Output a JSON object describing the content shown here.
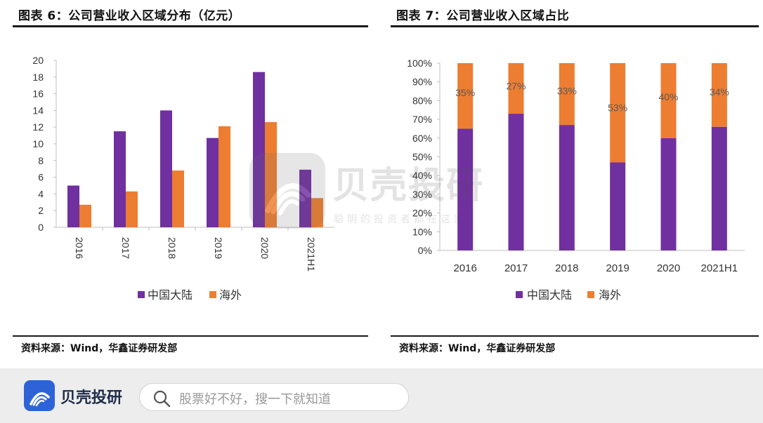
{
  "left": {
    "title": "图表 6：公司营业收入区域分布（亿元）",
    "source": "资料来源：Wind，华鑫证券研发部"
  },
  "right": {
    "title": "图表 7：公司营业收入区域占比",
    "source": "资料来源：Wind，华鑫证券研发部"
  },
  "colors": {
    "mainland": "#7030a0",
    "overseas": "#ed7d31",
    "rule": "#1a1a1a",
    "brand": "#2e63d8"
  },
  "chart_data": [
    {
      "type": "bar",
      "title": "",
      "categories": [
        "2016",
        "2017",
        "2018",
        "2019",
        "2020",
        "2021H1"
      ],
      "series": [
        {
          "name": "中国大陆",
          "values": [
            5.0,
            11.5,
            14.0,
            10.7,
            18.6,
            6.9
          ]
        },
        {
          "name": "海外",
          "values": [
            2.7,
            4.3,
            6.8,
            12.1,
            12.6,
            3.5
          ]
        }
      ],
      "ylim": [
        0,
        20
      ],
      "yticks": [
        0,
        2,
        4,
        6,
        8,
        10,
        12,
        14,
        16,
        18,
        20
      ],
      "xlabel": "",
      "ylabel": "",
      "grid": false,
      "legend": "bottom"
    },
    {
      "type": "bar",
      "stacked": true,
      "title": "",
      "categories": [
        "2016",
        "2017",
        "2018",
        "2019",
        "2020",
        "2021H1"
      ],
      "series": [
        {
          "name": "中国大陆",
          "values": [
            65,
            73,
            67,
            47,
            60,
            66
          ]
        },
        {
          "name": "海外",
          "values": [
            35,
            27,
            33,
            53,
            40,
            34
          ]
        }
      ],
      "data_labels": [
        "35%",
        "27%",
        "33%",
        "53%",
        "40%",
        "34%"
      ],
      "ylim": [
        0,
        100
      ],
      "yticks": [
        "0%",
        "10%",
        "20%",
        "30%",
        "40%",
        "50%",
        "60%",
        "70%",
        "80%",
        "90%",
        "100%"
      ],
      "xlabel": "",
      "ylabel": "",
      "grid": false,
      "legend": "bottom"
    }
  ],
  "watermark": {
    "name": "贝壳投研",
    "slogan": "聪明的投资者都在这里"
  },
  "footer": {
    "brand_name": "贝壳投研",
    "search_placeholder": "股票好不好，搜一下就知道",
    "search_icon": "search-icon",
    "logo_icon": "shell-logo-icon"
  }
}
